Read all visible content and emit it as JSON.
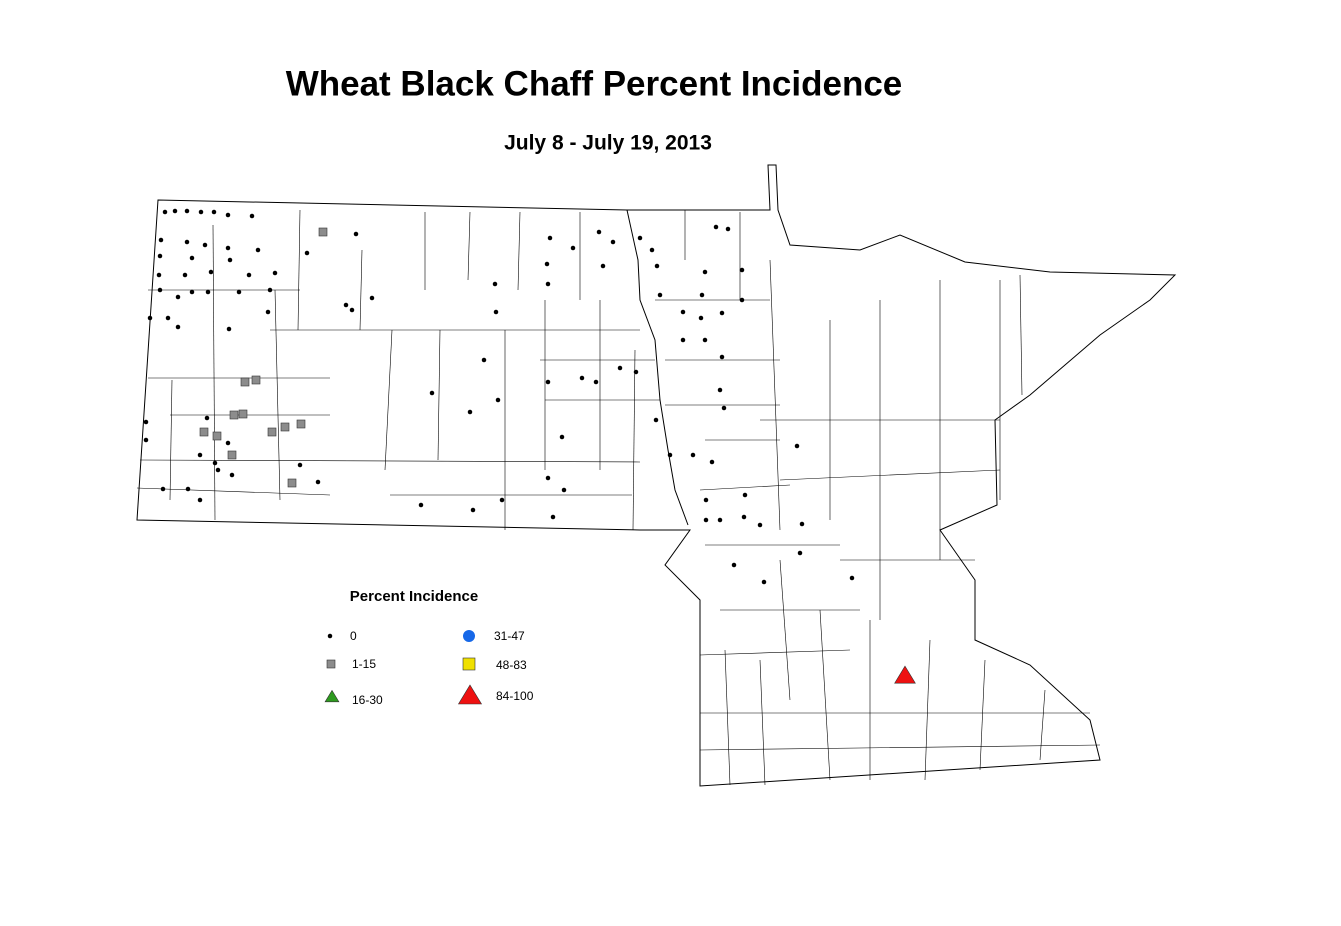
{
  "title": "Wheat Black Chaff Percent Incidence",
  "subtitle": "July 8 - July 19, 2013",
  "legend": {
    "title": "Percent Incidence",
    "items": [
      {
        "label": "0",
        "shape": "dot",
        "color": "#000000"
      },
      {
        "label": "1-15",
        "shape": "square",
        "color": "#8c8c8c"
      },
      {
        "label": "16-30",
        "shape": "triangle",
        "color": "#2e9a1f"
      },
      {
        "label": "31-47",
        "shape": "circle",
        "color": "#1668e8"
      },
      {
        "label": "48-83",
        "shape": "square",
        "color": "#f0e000"
      },
      {
        "label": "84-100",
        "shape": "triangle",
        "color": "#ee1111"
      }
    ]
  }
}
